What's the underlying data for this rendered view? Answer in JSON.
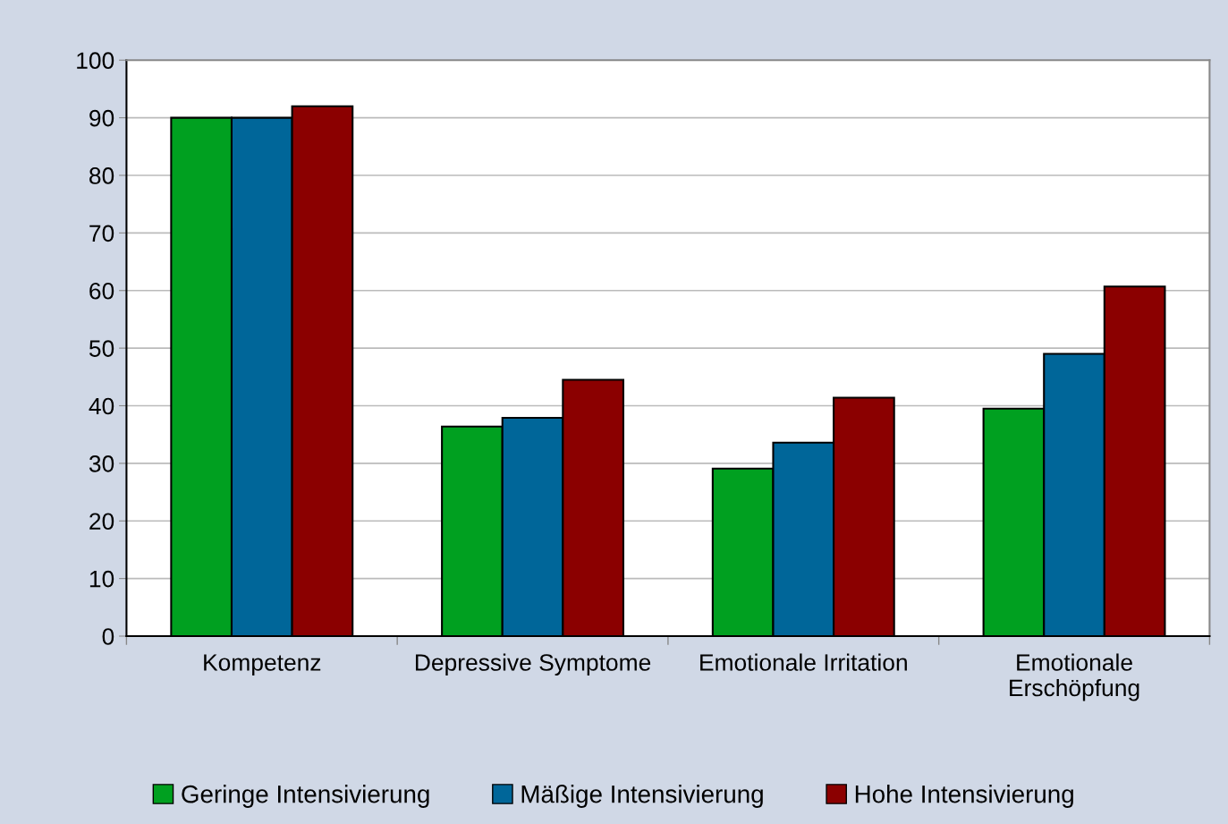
{
  "chart_data": {
    "type": "bar",
    "categories": [
      "Kompetenz",
      "Depressive Symptome",
      "Emotionale Irritation",
      "Emotionale\nErschöpfung"
    ],
    "series": [
      {
        "name": "Geringe Intensivierung",
        "color": "#00a020",
        "values": [
          90,
          36.4,
          29.1,
          39.5
        ]
      },
      {
        "name": "Mäßige Intensivierung",
        "color": "#006699",
        "values": [
          90,
          37.9,
          33.6,
          49
        ]
      },
      {
        "name": "Hohe Intensivierung",
        "color": "#8b0000",
        "values": [
          92,
          44.5,
          41.4,
          60.7
        ]
      }
    ],
    "ylim": [
      0,
      100
    ],
    "yticks": [
      0,
      10,
      20,
      30,
      40,
      50,
      60,
      70,
      80,
      90,
      100
    ],
    "grid": "y",
    "legend": "bottom"
  }
}
